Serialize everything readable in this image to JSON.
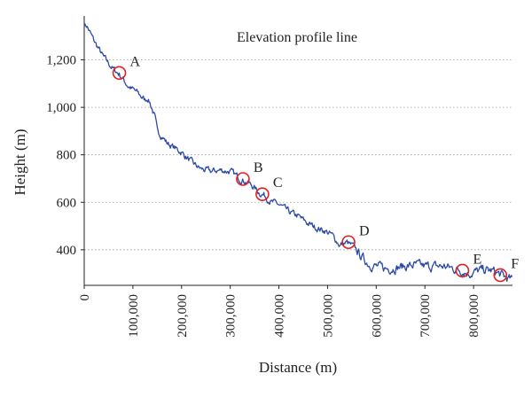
{
  "chart_data": {
    "type": "line",
    "xlabel": "Distance (m)",
    "ylabel": "Height (m)",
    "xlim": [
      0,
      880000
    ],
    "ylim": [
      250,
      1370
    ],
    "x_ticks": [
      0,
      100000,
      200000,
      300000,
      400000,
      500000,
      600000,
      700000,
      800000
    ],
    "x_tick_labels": [
      "0",
      "100,000",
      "200,000",
      "300,000",
      "400,000",
      "500,000",
      "600,000",
      "700,000",
      "800,000"
    ],
    "y_ticks": [
      400,
      600,
      800,
      1000,
      1200
    ],
    "y_tick_labels": [
      "400",
      "600",
      "800",
      "1,000",
      "1,200"
    ],
    "grid": "horizontal dotted",
    "legend_position": "top-center",
    "series": [
      {
        "name": "Elevation profile line",
        "color": "#2b4aa8",
        "x": [
          0,
          5000,
          20000,
          40000,
          60000,
          72000,
          90000,
          110000,
          125000,
          130000,
          135000,
          145000,
          150000,
          160000,
          170000,
          185000,
          200000,
          215000,
          225000,
          240000,
          260000,
          280000,
          300000,
          320000,
          330000,
          345000,
          360000,
          370000,
          385000,
          400000,
          420000,
          440000,
          460000,
          480000,
          495000,
          510000,
          525000,
          540000,
          555000,
          570000,
          585000,
          600000,
          620000,
          640000,
          660000,
          680000,
          700000,
          720000,
          740000,
          760000,
          780000,
          790000,
          800000,
          820000,
          840000,
          855000,
          865000,
          875000,
          880000
        ],
        "y": [
          1350,
          1345,
          1280,
          1210,
          1160,
          1140,
          1090,
          1060,
          1030,
          1040,
          1020,
          960,
          900,
          880,
          850,
          830,
          810,
          780,
          760,
          740,
          730,
          735,
          730,
          700,
          690,
          670,
          640,
          630,
          600,
          590,
          560,
          540,
          510,
          490,
          480,
          460,
          420,
          430,
          410,
          370,
          340,
          330,
          320,
          325,
          330,
          335,
          330,
          330,
          330,
          320,
          310,
          300,
          305,
          315,
          310,
          295,
          285,
          275,
          270
        ]
      }
    ],
    "annotations": [
      {
        "label": "A",
        "x": 72000,
        "y": 1145
      },
      {
        "label": "B",
        "x": 326000,
        "y": 698
      },
      {
        "label": "C",
        "x": 366000,
        "y": 634
      },
      {
        "label": "D",
        "x": 543000,
        "y": 432
      },
      {
        "label": "E",
        "x": 777000,
        "y": 312
      },
      {
        "label": "F",
        "x": 855000,
        "y": 293
      }
    ]
  }
}
